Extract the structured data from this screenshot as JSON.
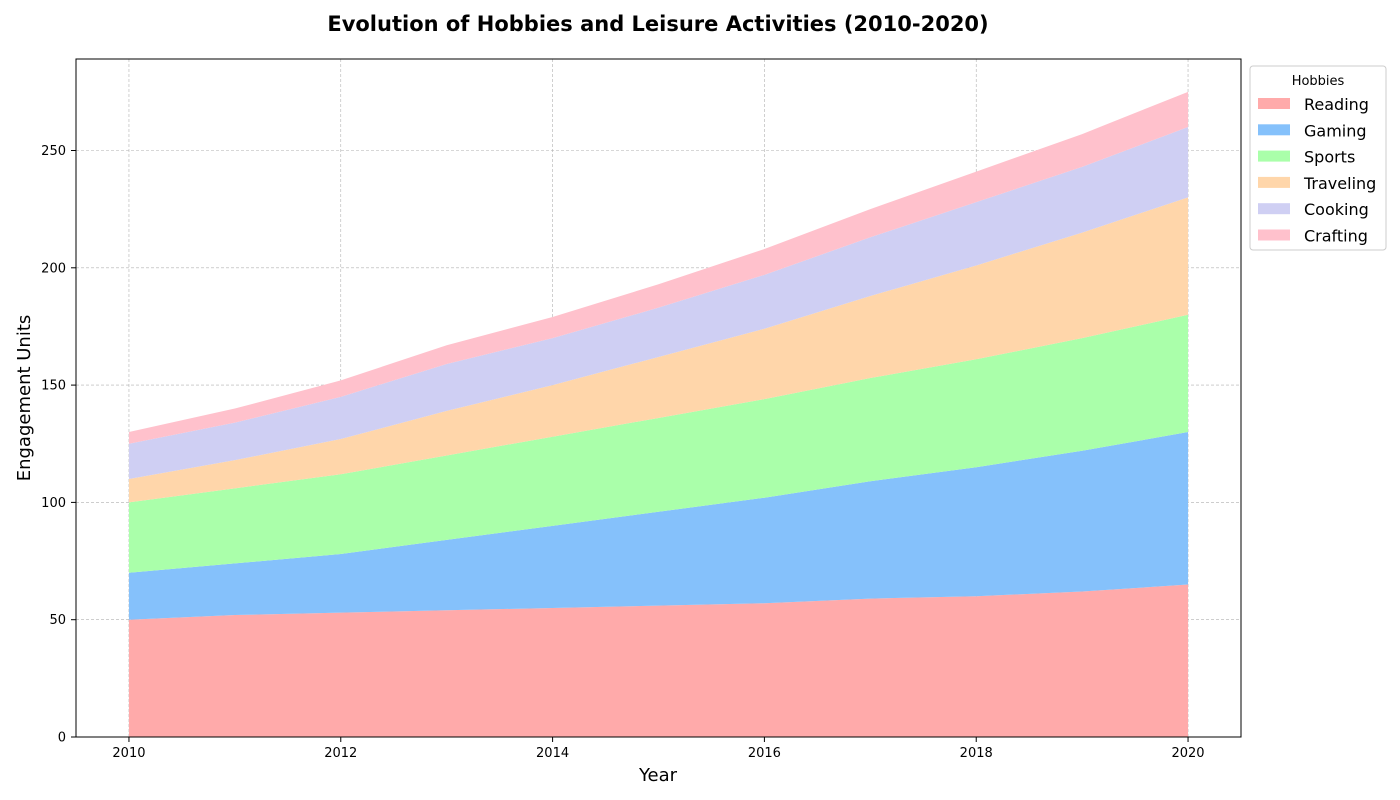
{
  "chart_data": {
    "type": "area",
    "stacked": true,
    "title": "Evolution of Hobbies and Leisure Activities (2010-2020)",
    "xlabel": "Year",
    "ylabel": "Engagement Units",
    "x": [
      2010,
      2011,
      2012,
      2013,
      2014,
      2015,
      2016,
      2017,
      2018,
      2019,
      2020
    ],
    "xlim": [
      2009.5,
      2020.5
    ],
    "ylim": [
      0,
      289
    ],
    "xticks": [
      2010,
      2012,
      2014,
      2016,
      2018,
      2020
    ],
    "yticks": [
      0,
      50,
      100,
      150,
      200,
      250
    ],
    "grid": true,
    "legend": {
      "title": "Hobbies",
      "placement": "upper-right-outside"
    },
    "series": [
      {
        "name": "Reading",
        "color": "#ffaaaa",
        "values": [
          50,
          52,
          53,
          54,
          55,
          56,
          57,
          59,
          60,
          62,
          65
        ]
      },
      {
        "name": "Gaming",
        "color": "#85c1fb",
        "values": [
          20,
          22,
          25,
          30,
          35,
          40,
          45,
          50,
          55,
          60,
          65
        ]
      },
      {
        "name": "Sports",
        "color": "#aaffaa",
        "values": [
          30,
          32,
          34,
          36,
          38,
          40,
          42,
          44,
          46,
          48,
          50
        ]
      },
      {
        "name": "Traveling",
        "color": "#ffd6aa",
        "values": [
          10,
          12,
          15,
          19,
          22,
          26,
          30,
          35,
          40,
          45,
          50
        ]
      },
      {
        "name": "Cooking",
        "color": "#cfcff3",
        "values": [
          15,
          16,
          18,
          20,
          20,
          21,
          23,
          25,
          27,
          28,
          30
        ]
      },
      {
        "name": "Crafting",
        "color": "#ffc1cc",
        "values": [
          5,
          6,
          7,
          8,
          9,
          10,
          11,
          12,
          13,
          14,
          15
        ]
      }
    ]
  }
}
